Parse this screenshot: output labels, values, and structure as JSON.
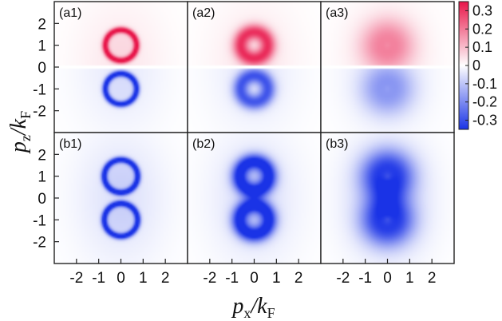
{
  "chart_data": {
    "type": "heatmap",
    "layout": "2 rows x 3 columns of density maps sharing axes and one colorbar",
    "xlabel": "p_x/k_F",
    "ylabel": "p_z/k_F",
    "xlim": [
      -3,
      3
    ],
    "ylim": [
      -3,
      3
    ],
    "xticks": [
      "-2",
      "-1",
      "0",
      "1",
      "2"
    ],
    "xtick_values": [
      -2,
      -1,
      0,
      1,
      2
    ],
    "yticks": [
      "2",
      "1",
      "0",
      "-1",
      "-2"
    ],
    "ytick_values": [
      2,
      1,
      0,
      -1,
      -2
    ],
    "colorbar": {
      "min": -0.35,
      "max": 0.35,
      "ticks": [
        "0.3",
        "0.2",
        "0.1",
        "0",
        "-0.1",
        "-0.2",
        "-0.3"
      ],
      "tick_values": [
        0.3,
        0.2,
        0.1,
        0,
        -0.1,
        -0.2,
        -0.3
      ],
      "colors": {
        "negative": "#1a33e6",
        "zero": "#ffffff",
        "positive": "#e8164a"
      }
    },
    "panels": [
      {
        "label": "(a1)",
        "kind": "antisymmetric",
        "rings": [
          {
            "cx": 0,
            "cz": 1,
            "r": 0.7,
            "width": 0.14,
            "amp": 0.33
          },
          {
            "cx": 0,
            "cz": -1,
            "r": 0.7,
            "width": 0.14,
            "amp": 0.33
          }
        ],
        "fill": 0.08
      },
      {
        "label": "(a2)",
        "kind": "antisymmetric",
        "rings": [
          {
            "cx": 0,
            "cz": 1,
            "r": 0.6,
            "width": 0.35,
            "amp": 0.26
          },
          {
            "cx": 0,
            "cz": -1,
            "r": 0.6,
            "width": 0.35,
            "amp": 0.24
          }
        ],
        "fill": 0.1
      },
      {
        "label": "(a3)",
        "kind": "antisymmetric",
        "rings": [
          {
            "cx": 0,
            "cz": 1,
            "r": 0.3,
            "width": 0.9,
            "amp": 0.15
          },
          {
            "cx": 0,
            "cz": -1,
            "r": 0.3,
            "width": 0.9,
            "amp": 0.14
          }
        ],
        "fill": 0.05
      },
      {
        "label": "(b1)",
        "kind": "negative",
        "rings": [
          {
            "cx": 0,
            "cz": 1,
            "r": 0.75,
            "width": 0.14,
            "amp": 0.33
          },
          {
            "cx": 0,
            "cz": -1,
            "r": 0.75,
            "width": 0.14,
            "amp": 0.33
          }
        ],
        "fill": 0.1
      },
      {
        "label": "(b2)",
        "kind": "negative",
        "rings": [
          {
            "cx": 0,
            "cz": 1,
            "r": 0.65,
            "width": 0.35,
            "amp": 0.3
          },
          {
            "cx": 0,
            "cz": -1,
            "r": 0.65,
            "width": 0.35,
            "amp": 0.3
          }
        ],
        "fill": 0.22
      },
      {
        "label": "(b3)",
        "kind": "negative",
        "rings": [
          {
            "cx": 0,
            "cz": 1,
            "r": 0.4,
            "width": 0.8,
            "amp": 0.24
          },
          {
            "cx": 0,
            "cz": -1,
            "r": 0.4,
            "width": 0.8,
            "amp": 0.24
          }
        ],
        "fill": 0.2
      }
    ]
  }
}
